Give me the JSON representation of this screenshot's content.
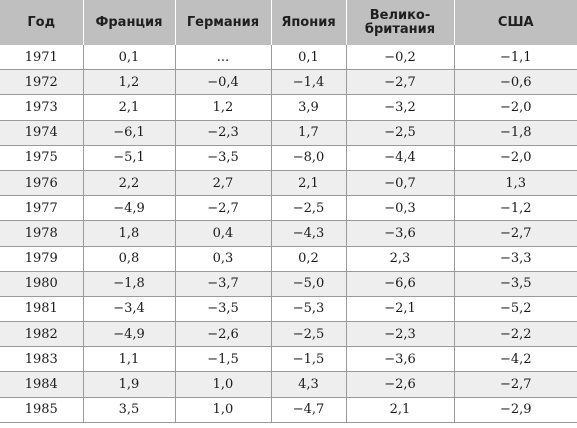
{
  "table": {
    "headers": [
      "Год",
      "Франция",
      "Германия",
      "Япония",
      "Велико-\nбритания",
      "США"
    ],
    "rows": [
      [
        "1971",
        "0,1",
        "...",
        "0,1",
        "−0,2",
        "−1,1"
      ],
      [
        "1972",
        "1,2",
        "−0,4",
        "−1,4",
        "−2,7",
        "−0,6"
      ],
      [
        "1973",
        "2,1",
        "1,2",
        "3,9",
        "−3,2",
        "−2,0"
      ],
      [
        "1974",
        "−6,1",
        "−2,3",
        "1,7",
        "−2,5",
        "−1,8"
      ],
      [
        "1975",
        "−5,1",
        "−3,5",
        "−8,0",
        "−4,4",
        "−2,0"
      ],
      [
        "1976",
        "2,2",
        "2,7",
        "2,1",
        "−0,7",
        "1,3"
      ],
      [
        "1977",
        "−4,9",
        "−2,7",
        "−2,5",
        "−0,3",
        "−1,2"
      ],
      [
        "1978",
        "1,8",
        "0,4",
        "−4,3",
        "−3,6",
        "−2,7"
      ],
      [
        "1979",
        "0,8",
        "0,3",
        "0,2",
        "2,3",
        "−3,3"
      ],
      [
        "1980",
        "−1,8",
        "−3,7",
        "−5,0",
        "−6,6",
        "−3,5"
      ],
      [
        "1981",
        "−3,4",
        "−3,5",
        "−5,3",
        "−2,1",
        "−5,2"
      ],
      [
        "1982",
        "−4,9",
        "−2,6",
        "−2,5",
        "−2,3",
        "−2,2"
      ],
      [
        "1983",
        "1,1",
        "−1,5",
        "−1,5",
        "−3,6",
        "−4,2"
      ],
      [
        "1984",
        "1,9",
        "1,0",
        "4,3",
        "−2,6",
        "−2,7"
      ],
      [
        "1985",
        "3,5",
        "1,0",
        "−4,7",
        "2,1",
        "−2,9"
      ]
    ]
  }
}
